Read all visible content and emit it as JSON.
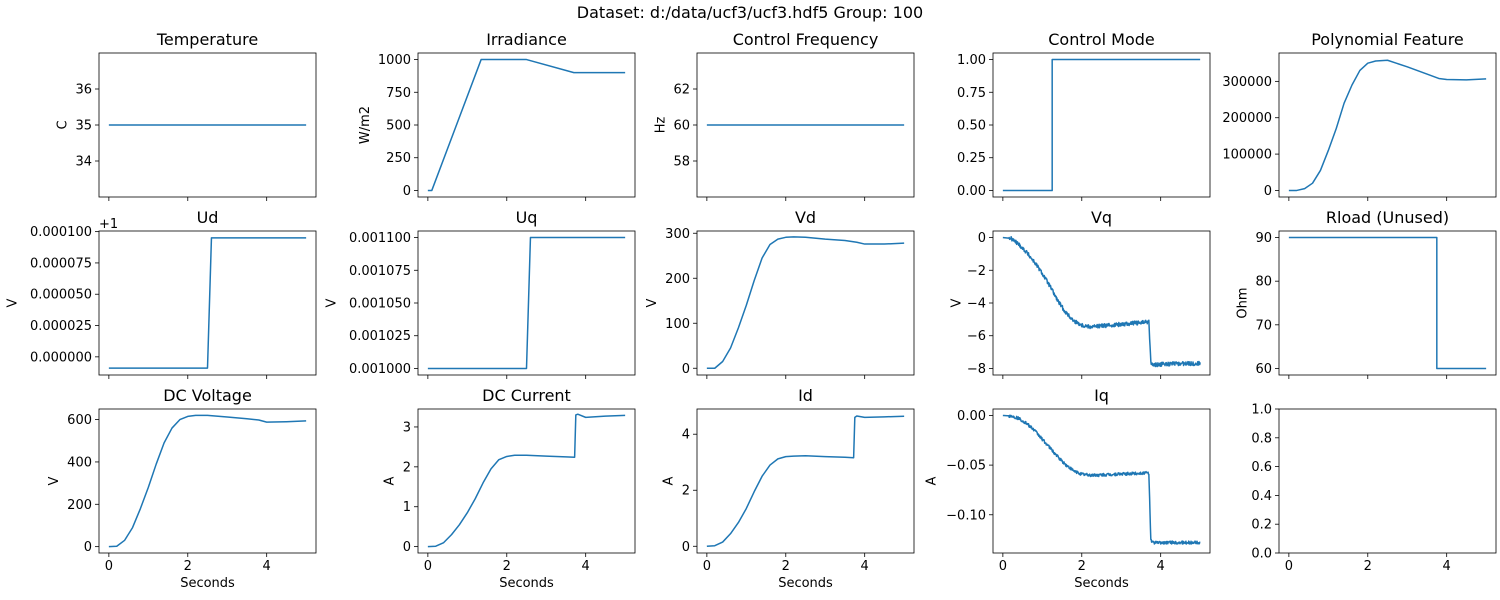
{
  "figure": {
    "suptitle": "Dataset: d:/data/ucf3/ucf3.hdf5 Group: 100",
    "line_color": "#1f77b4"
  },
  "chart_data": [
    {
      "type": "line",
      "title": "Temperature",
      "ylabel": "C",
      "xlabel": "",
      "xlim": [
        -0.25,
        5.25
      ],
      "ylim": [
        33.0,
        37.0
      ],
      "xticks": [
        0,
        2,
        4
      ],
      "xticklabels": [],
      "yticks": [
        34,
        35,
        36
      ],
      "yticklabels": [
        "34",
        "35",
        "36"
      ],
      "offset_text": "",
      "series": [
        {
          "x": [
            0,
            5
          ],
          "y": [
            35,
            35
          ]
        }
      ]
    },
    {
      "type": "line",
      "title": "Irradiance",
      "ylabel": "W/m2",
      "xlabel": "",
      "xlim": [
        -0.25,
        5.25
      ],
      "ylim": [
        -50,
        1050
      ],
      "xticks": [
        0,
        2,
        4
      ],
      "xticklabels": [],
      "yticks": [
        0,
        250,
        500,
        750,
        1000
      ],
      "yticklabels": [
        "0",
        "250",
        "500",
        "750",
        "1000"
      ],
      "offset_text": "",
      "series": [
        {
          "x": [
            0,
            0.1,
            1.35,
            2.5,
            3.7,
            5
          ],
          "y": [
            0,
            0,
            1000,
            1000,
            900,
            900
          ]
        }
      ]
    },
    {
      "type": "line",
      "title": "Control Frequency",
      "ylabel": "Hz",
      "xlabel": "",
      "xlim": [
        -0.25,
        5.25
      ],
      "ylim": [
        56.0,
        64.0
      ],
      "xticks": [
        0,
        2,
        4
      ],
      "xticklabels": [],
      "yticks": [
        58,
        60,
        62
      ],
      "yticklabels": [
        "58",
        "60",
        "62"
      ],
      "offset_text": "",
      "series": [
        {
          "x": [
            0,
            5
          ],
          "y": [
            60,
            60
          ]
        }
      ]
    },
    {
      "type": "line",
      "title": "Control Mode",
      "ylabel": "",
      "xlabel": "",
      "xlim": [
        -0.25,
        5.25
      ],
      "ylim": [
        -0.05,
        1.05
      ],
      "xticks": [
        0,
        2,
        4
      ],
      "xticklabels": [],
      "yticks": [
        0,
        0.25,
        0.5,
        0.75,
        1.0
      ],
      "yticklabels": [
        "0.00",
        "0.25",
        "0.50",
        "0.75",
        "1.00"
      ],
      "offset_text": "",
      "series": [
        {
          "x": [
            0,
            1.25,
            1.25,
            5
          ],
          "y": [
            0,
            0,
            1,
            1
          ]
        }
      ]
    },
    {
      "type": "line",
      "title": "Polynomial Feature",
      "ylabel": "",
      "xlabel": "",
      "xlim": [
        -0.25,
        5.25
      ],
      "ylim": [
        -18000,
        378000
      ],
      "xticks": [
        0,
        2,
        4
      ],
      "xticklabels": [],
      "yticks": [
        0,
        100000,
        200000,
        300000
      ],
      "yticklabels": [
        "0",
        "100000",
        "200000",
        "300000"
      ],
      "offset_text": "",
      "series": [
        {
          "x": [
            0,
            0.2,
            0.4,
            0.6,
            0.8,
            1.0,
            1.2,
            1.4,
            1.6,
            1.8,
            2.0,
            2.2,
            2.5,
            3.0,
            3.5,
            3.8,
            4.0,
            4.5,
            5.0
          ],
          "y": [
            0,
            0,
            5000,
            20000,
            55000,
            110000,
            170000,
            240000,
            290000,
            330000,
            350000,
            356000,
            358000,
            340000,
            320000,
            308000,
            305000,
            304000,
            307000
          ]
        }
      ]
    },
    {
      "type": "line",
      "title": "Ud",
      "ylabel": "V",
      "xlabel": "",
      "xlim": [
        -0.25,
        5.25
      ],
      "ylim": [
        -1.45e-05,
        0.0001005
      ],
      "xticks": [
        0,
        2,
        4
      ],
      "xticklabels": [],
      "yticks": [
        0,
        2.5e-05,
        5e-05,
        7.5e-05,
        0.0001
      ],
      "yticklabels": [
        "0.000000",
        "0.000025",
        "0.000050",
        "0.000075",
        "0.000100"
      ],
      "offset_text": "+1",
      "series": [
        {
          "x": [
            0,
            2.5,
            2.6,
            5
          ],
          "y": [
            -9e-06,
            -9e-06,
            9.5e-05,
            9.5e-05
          ]
        }
      ]
    },
    {
      "type": "line",
      "title": "Uq",
      "ylabel": "V",
      "xlabel": "",
      "xlim": [
        -0.25,
        5.25
      ],
      "ylim": [
        0.000995,
        0.001105
      ],
      "xticks": [
        0,
        2,
        4
      ],
      "xticklabels": [],
      "yticks": [
        0.001,
        0.001025,
        0.00105,
        0.001075,
        0.0011
      ],
      "yticklabels": [
        "0.001000",
        "0.001025",
        "0.001050",
        "0.001075",
        "0.001100"
      ],
      "offset_text": "",
      "series": [
        {
          "x": [
            0,
            2.5,
            2.6,
            5
          ],
          "y": [
            0.001,
            0.001,
            0.0011,
            0.0011
          ]
        }
      ]
    },
    {
      "type": "line",
      "title": "Vd",
      "ylabel": "V",
      "xlabel": "",
      "xlim": [
        -0.25,
        5.25
      ],
      "ylim": [
        -15,
        305
      ],
      "xticks": [
        0,
        2,
        4
      ],
      "xticklabels": [],
      "yticks": [
        0,
        100,
        200,
        300
      ],
      "yticklabels": [
        "0",
        "100",
        "200",
        "300"
      ],
      "offset_text": "",
      "series": [
        {
          "x": [
            0,
            0.2,
            0.4,
            0.6,
            0.8,
            1.0,
            1.2,
            1.4,
            1.6,
            1.8,
            2.0,
            2.2,
            2.5,
            3.0,
            3.5,
            3.8,
            4.0,
            4.5,
            5.0
          ],
          "y": [
            0,
            0,
            15,
            45,
            90,
            140,
            195,
            245,
            275,
            287,
            291,
            292,
            291,
            287,
            284,
            280,
            276,
            276,
            278
          ]
        }
      ]
    },
    {
      "type": "line",
      "title": "Vq",
      "ylabel": "V",
      "xlabel": "",
      "xlim": [
        -0.25,
        5.25
      ],
      "ylim": [
        -8.4,
        0.4
      ],
      "xticks": [
        0,
        2,
        4
      ],
      "xticklabels": [],
      "yticks": [
        -8,
        -6,
        -4,
        -2,
        0
      ],
      "yticklabels": [
        "−8",
        "−6",
        "−4",
        "−2",
        "0"
      ],
      "offset_text": "",
      "series": [
        {
          "x": [
            0,
            0.2,
            0.4,
            0.6,
            0.8,
            1.0,
            1.2,
            1.4,
            1.6,
            1.8,
            2.0,
            2.2,
            2.5,
            3.0,
            3.5,
            3.7,
            3.75,
            3.8,
            4.0,
            4.5,
            5.0
          ],
          "y": [
            0,
            -0.05,
            -0.4,
            -0.9,
            -1.5,
            -2.2,
            -3.0,
            -3.9,
            -4.6,
            -5.1,
            -5.35,
            -5.45,
            -5.4,
            -5.3,
            -5.2,
            -5.15,
            -7.6,
            -7.8,
            -7.75,
            -7.7,
            -7.7
          ],
          "noise": 0.12
        }
      ]
    },
    {
      "type": "line",
      "title": "Rload (Unused)",
      "ylabel": "Ohm",
      "xlabel": "",
      "xlim": [
        -0.25,
        5.25
      ],
      "ylim": [
        58.5,
        91.5
      ],
      "xticks": [
        0,
        2,
        4
      ],
      "xticklabels": [],
      "yticks": [
        60,
        70,
        80,
        90
      ],
      "yticklabels": [
        "60",
        "70",
        "80",
        "90"
      ],
      "offset_text": "",
      "series": [
        {
          "x": [
            0,
            3.75,
            3.75,
            5
          ],
          "y": [
            90,
            90,
            60,
            60
          ]
        }
      ]
    },
    {
      "type": "line",
      "title": "DC Voltage",
      "ylabel": "V",
      "xlabel": "Seconds",
      "xlim": [
        -0.25,
        5.25
      ],
      "ylim": [
        -30,
        650
      ],
      "xticks": [
        0,
        2,
        4
      ],
      "xticklabels": [
        "0",
        "2",
        "4"
      ],
      "yticks": [
        0,
        200,
        400,
        600
      ],
      "yticklabels": [
        "0",
        "200",
        "400",
        "600"
      ],
      "offset_text": "",
      "series": [
        {
          "x": [
            0,
            0.2,
            0.4,
            0.6,
            0.8,
            1.0,
            1.2,
            1.4,
            1.6,
            1.8,
            2.0,
            2.2,
            2.5,
            3.0,
            3.5,
            3.8,
            4.0,
            4.5,
            5.0
          ],
          "y": [
            0,
            2,
            30,
            90,
            180,
            280,
            390,
            490,
            560,
            600,
            615,
            620,
            620,
            612,
            604,
            598,
            588,
            590,
            594
          ]
        }
      ]
    },
    {
      "type": "line",
      "title": "DC Current",
      "ylabel": "A",
      "xlabel": "Seconds",
      "xlim": [
        -0.25,
        5.25
      ],
      "ylim": [
        -0.16,
        3.45
      ],
      "xticks": [
        0,
        2,
        4
      ],
      "xticklabels": [
        "0",
        "2",
        "4"
      ],
      "yticks": [
        0,
        1,
        2,
        3
      ],
      "yticklabels": [
        "0",
        "1",
        "2",
        "3"
      ],
      "offset_text": "",
      "series": [
        {
          "x": [
            0,
            0.2,
            0.4,
            0.6,
            0.8,
            1.0,
            1.2,
            1.4,
            1.6,
            1.8,
            2.0,
            2.2,
            2.5,
            3.0,
            3.5,
            3.72,
            3.75,
            3.8,
            4.0,
            4.5,
            5.0
          ],
          "y": [
            0,
            0.01,
            0.1,
            0.3,
            0.55,
            0.85,
            1.2,
            1.6,
            1.95,
            2.18,
            2.26,
            2.29,
            2.29,
            2.27,
            2.25,
            2.24,
            3.3,
            3.32,
            3.24,
            3.27,
            3.29
          ]
        }
      ]
    },
    {
      "type": "line",
      "title": "Id",
      "ylabel": "A",
      "xlabel": "Seconds",
      "xlim": [
        -0.25,
        5.25
      ],
      "ylim": [
        -0.24,
        4.9
      ],
      "xticks": [
        0,
        2,
        4
      ],
      "xticklabels": [
        "0",
        "2",
        "4"
      ],
      "yticks": [
        0,
        2,
        4
      ],
      "yticklabels": [
        "0",
        "2",
        "4"
      ],
      "offset_text": "",
      "series": [
        {
          "x": [
            0,
            0.2,
            0.4,
            0.6,
            0.8,
            1.0,
            1.2,
            1.4,
            1.6,
            1.8,
            2.0,
            2.2,
            2.5,
            3.0,
            3.5,
            3.72,
            3.75,
            3.8,
            4.0,
            4.5,
            5.0
          ],
          "y": [
            0,
            0.02,
            0.15,
            0.45,
            0.85,
            1.35,
            1.95,
            2.5,
            2.9,
            3.12,
            3.2,
            3.22,
            3.23,
            3.2,
            3.18,
            3.16,
            4.6,
            4.65,
            4.6,
            4.62,
            4.64
          ]
        }
      ]
    },
    {
      "type": "line",
      "title": "Iq",
      "ylabel": "A",
      "xlabel": "Seconds",
      "xlim": [
        -0.25,
        5.25
      ],
      "ylim": [
        -0.1385,
        0.0065
      ],
      "xticks": [
        0,
        2,
        4
      ],
      "xticklabels": [
        "0",
        "2",
        "4"
      ],
      "yticks": [
        -0.1,
        -0.05,
        0.0
      ],
      "yticklabels": [
        "−0.10",
        "−0.05",
        "0.00"
      ],
      "offset_text": "",
      "series": [
        {
          "x": [
            0,
            0.2,
            0.4,
            0.6,
            0.8,
            1.0,
            1.2,
            1.4,
            1.6,
            1.8,
            2.0,
            2.2,
            2.5,
            3.0,
            3.5,
            3.7,
            3.75,
            3.8,
            4.0,
            4.5,
            5.0
          ],
          "y": [
            0,
            -0.0005,
            -0.003,
            -0.008,
            -0.015,
            -0.024,
            -0.033,
            -0.042,
            -0.05,
            -0.056,
            -0.059,
            -0.06,
            -0.06,
            -0.059,
            -0.058,
            -0.058,
            -0.125,
            -0.128,
            -0.128,
            -0.128,
            -0.128
          ],
          "noise": 0.0015
        }
      ]
    },
    {
      "type": "line",
      "title": "",
      "ylabel": "",
      "xlabel": "",
      "xlim": [
        -0.25,
        5.25
      ],
      "ylim": [
        0.0,
        1.0
      ],
      "xticks": [
        0,
        2,
        4
      ],
      "xticklabels": [
        "0",
        "2",
        "4"
      ],
      "yticks": [
        0,
        0.2,
        0.4,
        0.6,
        0.8,
        1.0
      ],
      "yticklabels": [
        "0.0",
        "0.2",
        "0.4",
        "0.6",
        "0.8",
        "1.0"
      ],
      "offset_text": "",
      "series": []
    }
  ]
}
